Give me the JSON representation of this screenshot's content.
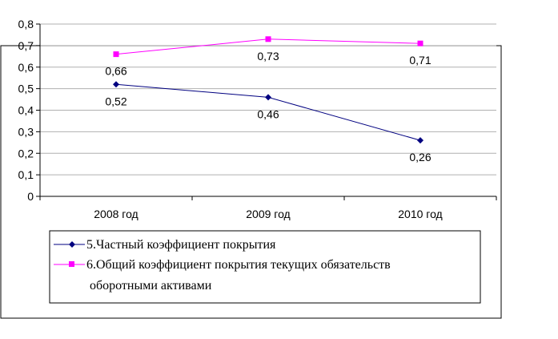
{
  "chart_data": {
    "type": "line",
    "title": "",
    "xlabel": "",
    "ylabel": "",
    "categories": [
      "2008 год",
      "2009 год",
      "2010 год"
    ],
    "ylim": [
      0,
      0.8
    ],
    "yticks": [
      "0",
      "0,1",
      "0,2",
      "0,3",
      "0,4",
      "0,5",
      "0,6",
      "0,7",
      "0,8"
    ],
    "grid": true,
    "legend_position": "bottom",
    "series": [
      {
        "name": "5.Частный коэффициент покрытия",
        "values": [
          0.52,
          0.46,
          0.26
        ],
        "labels": [
          "0,52",
          "0,46",
          "0,26"
        ],
        "color": "#000080",
        "marker": "diamond"
      },
      {
        "name": "6.Общий коэффициент покрытия текущих обязательств оборотными активами",
        "name_lines": [
          "6.Общий коэффициент покрытия текущих обязательств",
          "оборотными активами"
        ],
        "values": [
          0.66,
          0.73,
          0.71
        ],
        "labels": [
          "0,66",
          "0,73",
          "0,71"
        ],
        "color": "#ff00ff",
        "marker": "square"
      }
    ]
  }
}
